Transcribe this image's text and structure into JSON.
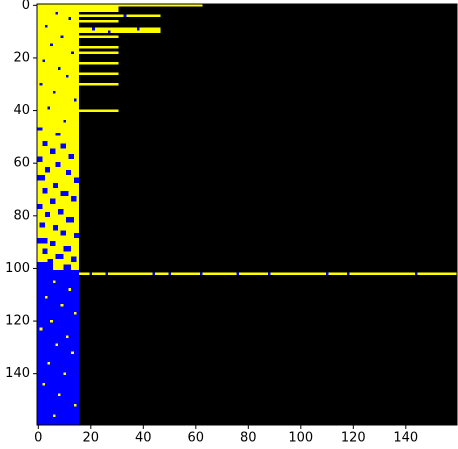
{
  "chart_data": {
    "type": "image",
    "xlim": [
      -0.5,
      159.5
    ],
    "ylim": [
      159.5,
      -0.5
    ],
    "xticks": [
      0,
      20,
      40,
      60,
      80,
      100,
      120,
      140
    ],
    "yticks": [
      0,
      20,
      40,
      60,
      80,
      100,
      120,
      140
    ],
    "colors": [
      "#000000",
      "#0000ff",
      "#ffff00"
    ],
    "rects": [
      [
        0,
        159,
        0,
        159,
        0
      ],
      [
        0,
        100,
        0,
        15,
        2
      ],
      [
        101,
        159,
        0,
        15,
        1
      ],
      [
        0,
        0,
        16,
        62,
        2
      ],
      [
        1,
        2,
        16,
        30,
        2
      ],
      [
        4,
        4,
        16,
        46,
        2
      ],
      [
        4,
        4,
        33,
        33,
        1
      ],
      [
        6,
        6,
        16,
        30,
        2
      ],
      [
        9,
        10,
        16,
        46,
        2
      ],
      [
        9,
        9,
        21,
        21,
        1
      ],
      [
        10,
        10,
        27,
        27,
        1
      ],
      [
        9,
        9,
        38,
        38,
        1
      ],
      [
        12,
        12,
        16,
        30,
        2
      ],
      [
        16,
        16,
        16,
        30,
        2
      ],
      [
        18,
        18,
        16,
        30,
        2
      ],
      [
        22,
        22,
        16,
        30,
        2
      ],
      [
        26,
        26,
        16,
        30,
        2
      ],
      [
        30,
        30,
        16,
        30,
        2
      ],
      [
        40,
        40,
        16,
        30,
        2
      ],
      [
        102,
        102,
        16,
        159,
        2
      ],
      [
        102,
        102,
        20,
        20,
        1
      ],
      [
        102,
        102,
        26,
        26,
        1
      ],
      [
        102,
        102,
        44,
        44,
        1
      ],
      [
        102,
        102,
        50,
        50,
        1
      ],
      [
        102,
        102,
        62,
        62,
        1
      ],
      [
        102,
        102,
        76,
        76,
        1
      ],
      [
        102,
        102,
        88,
        88,
        1
      ],
      [
        102,
        102,
        110,
        110,
        1
      ],
      [
        102,
        102,
        118,
        118,
        1
      ],
      [
        102,
        102,
        144,
        144,
        1
      ],
      [
        3,
        3,
        7,
        7,
        1
      ],
      [
        5,
        5,
        12,
        12,
        1
      ],
      [
        8,
        8,
        3,
        3,
        1
      ],
      [
        12,
        12,
        9,
        9,
        1
      ],
      [
        15,
        15,
        5,
        5,
        1
      ],
      [
        18,
        18,
        13,
        13,
        1
      ],
      [
        21,
        21,
        2,
        2,
        1
      ],
      [
        24,
        24,
        8,
        8,
        1
      ],
      [
        27,
        27,
        11,
        11,
        1
      ],
      [
        30,
        30,
        1,
        1,
        1
      ],
      [
        33,
        33,
        6,
        6,
        1
      ],
      [
        36,
        36,
        14,
        14,
        1
      ],
      [
        39,
        39,
        4,
        4,
        1
      ],
      [
        44,
        44,
        10,
        10,
        1
      ],
      [
        47,
        47,
        0,
        1,
        1
      ],
      [
        49,
        49,
        7,
        8,
        1
      ],
      [
        52,
        53,
        2,
        3,
        1
      ],
      [
        53,
        54,
        9,
        10,
        1
      ],
      [
        55,
        56,
        5,
        6,
        1
      ],
      [
        57,
        58,
        12,
        13,
        1
      ],
      [
        58,
        59,
        0,
        1,
        1
      ],
      [
        60,
        61,
        7,
        8,
        1
      ],
      [
        62,
        63,
        3,
        4,
        1
      ],
      [
        63,
        64,
        11,
        12,
        1
      ],
      [
        65,
        66,
        0,
        2,
        1
      ],
      [
        66,
        67,
        14,
        15,
        1
      ],
      [
        68,
        69,
        6,
        7,
        1
      ],
      [
        70,
        71,
        2,
        3,
        1
      ],
      [
        71,
        72,
        9,
        11,
        1
      ],
      [
        73,
        74,
        13,
        14,
        1
      ],
      [
        74,
        75,
        5,
        6,
        1
      ],
      [
        76,
        77,
        0,
        1,
        1
      ],
      [
        78,
        79,
        8,
        9,
        1
      ],
      [
        79,
        80,
        3,
        4,
        1
      ],
      [
        81,
        82,
        11,
        13,
        1
      ],
      [
        83,
        84,
        1,
        2,
        1
      ],
      [
        84,
        85,
        6,
        7,
        1
      ],
      [
        86,
        87,
        9,
        10,
        1
      ],
      [
        87,
        88,
        14,
        15,
        1
      ],
      [
        89,
        90,
        0,
        3,
        1
      ],
      [
        90,
        91,
        5,
        6,
        1
      ],
      [
        92,
        93,
        10,
        12,
        1
      ],
      [
        93,
        94,
        2,
        3,
        1
      ],
      [
        95,
        96,
        7,
        9,
        1
      ],
      [
        96,
        97,
        13,
        14,
        1
      ],
      [
        98,
        100,
        0,
        5,
        1
      ],
      [
        99,
        100,
        10,
        12,
        1
      ],
      [
        97,
        98,
        4,
        5,
        1
      ],
      [
        105,
        105,
        6,
        6,
        2
      ],
      [
        108,
        108,
        12,
        12,
        2
      ],
      [
        111,
        111,
        3,
        3,
        2
      ],
      [
        114,
        114,
        9,
        9,
        2
      ],
      [
        117,
        117,
        14,
        14,
        2
      ],
      [
        120,
        120,
        5,
        5,
        2
      ],
      [
        123,
        123,
        1,
        1,
        2
      ],
      [
        126,
        126,
        11,
        11,
        2
      ],
      [
        129,
        129,
        7,
        7,
        2
      ],
      [
        132,
        132,
        13,
        13,
        2
      ],
      [
        136,
        136,
        4,
        4,
        2
      ],
      [
        140,
        140,
        10,
        10,
        2
      ],
      [
        144,
        144,
        2,
        2,
        2
      ],
      [
        148,
        148,
        8,
        8,
        2
      ],
      [
        152,
        152,
        14,
        14,
        2
      ],
      [
        156,
        156,
        6,
        6,
        2
      ]
    ]
  }
}
